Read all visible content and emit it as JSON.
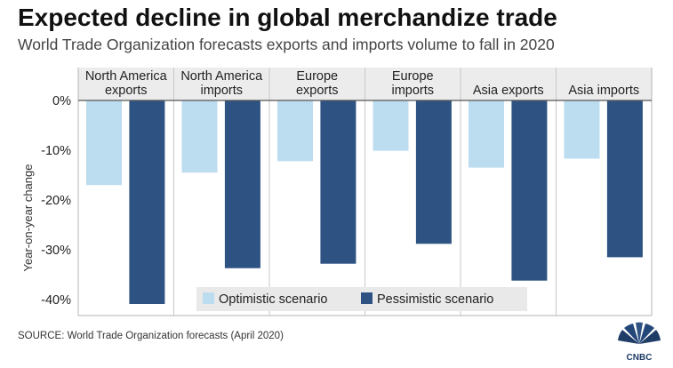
{
  "header": {
    "title": "Expected decline in global merchandize trade",
    "subtitle": "World Trade Organization forecasts exports and imports volume to fall in 2020"
  },
  "footer": {
    "source": "SOURCE: World Trade Organization forecasts (April 2020)",
    "logo_text": "CNBC"
  },
  "chart_data": {
    "type": "bar",
    "categories": [
      [
        "North America",
        "exports"
      ],
      [
        "North America",
        "imports"
      ],
      [
        "Europe",
        "exports"
      ],
      [
        "Europe",
        "imports"
      ],
      [
        "Asia exports"
      ],
      [
        "Asia imports"
      ]
    ],
    "series": [
      {
        "name": "Optimistic scenario",
        "color": "#bcdcf0",
        "values": [
          -17,
          -14.5,
          -12.2,
          -10.1,
          -13.5,
          -11.7
        ]
      },
      {
        "name": "Pessimistic scenario",
        "color": "#2e5382",
        "values": [
          -40.9,
          -33.7,
          -32.8,
          -28.8,
          -36.2,
          -31.5
        ]
      }
    ],
    "ylabel": "Year-on-year change",
    "ylim": [
      -42,
      0
    ],
    "yticks": [
      0,
      -10,
      -20,
      -30,
      -40
    ],
    "ytick_labels": [
      "0%",
      "-10%",
      "-20%",
      "-30%",
      "-40%"
    ],
    "grid": false,
    "legend": "bottom-center",
    "title": "Expected decline in global merchandize trade"
  }
}
